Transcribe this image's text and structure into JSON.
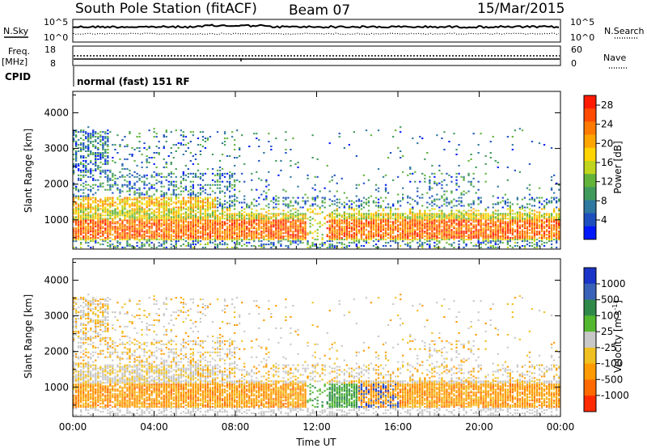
{
  "header": {
    "station": "South Pole Station (fitACF)",
    "beam": "Beam 07",
    "date": "15/Mar/2015"
  },
  "noise_panel": {
    "left_label": "N.Sky",
    "right_label": "N.Search",
    "left_ticks": [
      "10^5",
      "10^0"
    ],
    "right_ticks": [
      "10^5",
      "10^0"
    ]
  },
  "freq_panel": {
    "left_label": "Freq.",
    "left_unit": "[MHz]",
    "right_label": "Nave",
    "left_ticks": [
      "18",
      "8"
    ],
    "right_ticks": [
      "60",
      "0"
    ]
  },
  "cpid": {
    "label": "CPID",
    "value": "normal (fast) 151 RF"
  },
  "chart_data": [
    {
      "type": "heatmap",
      "panel": "power",
      "ylabel": "Slant Range [km]",
      "xlabel": "Time UT",
      "x_ticks": [
        "00:00",
        "04:00",
        "08:00",
        "12:00",
        "16:00",
        "20:00",
        "00:00"
      ],
      "xlim_hours": [
        0,
        24
      ],
      "y_ticks": [
        1000,
        2000,
        3000,
        4000
      ],
      "ylim_km": [
        180,
        4600
      ],
      "colorbar": {
        "label": "Power [dB]",
        "ticks": [
          "4",
          "8",
          "12",
          "16",
          "20",
          "24",
          "28"
        ],
        "colors": [
          "#0018ff",
          "#1d4fbf",
          "#2f78a0",
          "#3f9a5c",
          "#62b33a",
          "#bfd41c",
          "#ffd400",
          "#ffa500",
          "#ff7a00",
          "#ff4a00",
          "#ff1a00"
        ]
      }
    },
    {
      "type": "heatmap",
      "panel": "velocity",
      "ylabel": "Slant Range [km]",
      "xlabel": "Time UT",
      "x_ticks": [
        "00:00",
        "04:00",
        "08:00",
        "12:00",
        "16:00",
        "20:00",
        "00:00"
      ],
      "xlim_hours": [
        0,
        24
      ],
      "y_ticks": [
        1000,
        2000,
        3000,
        4000
      ],
      "ylim_km": [
        180,
        4600
      ],
      "colorbar": {
        "label": "Velocity [m s",
        "label_sup": "-1",
        "label_end": "]",
        "ticks": [
          "1000",
          "500",
          "100",
          "25",
          "-25",
          "-100",
          "-500",
          "-1000"
        ],
        "colors": [
          "#1a35c8",
          "#3a62b8",
          "#2f8a4a",
          "#53b82f",
          "#c8c8c8",
          "#f0c020",
          "#ff9a00",
          "#ff6a00",
          "#ff2a00"
        ]
      }
    }
  ]
}
